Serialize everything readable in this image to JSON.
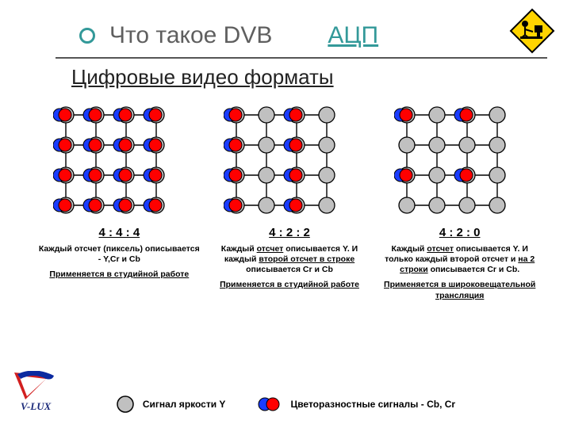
{
  "title": {
    "main": "Что такое DVB",
    "accent": "АЦП",
    "sub": "Цифровые видео форматы"
  },
  "colors": {
    "background": "#ffffff",
    "title_main": "#5f5f5f",
    "title_accent": "#339999",
    "bullet_ring": "#339999",
    "rule": "#555555",
    "text": "#000000",
    "grid_line": "#000000",
    "luma_fill": "#c0c0c0",
    "luma_stroke": "#000000",
    "cb_fill": "#1a3cff",
    "cr_fill": "#ff0000",
    "chroma_stroke": "#000000",
    "sign_bg": "#ffd400",
    "sign_border": "#000000",
    "logo_red": "#d21f1f",
    "logo_blue": "#0b2aa0",
    "logo_text": "#1b2a7a"
  },
  "sizes": {
    "title_fontsize": 30,
    "sub_fontsize": 26,
    "caption_ratio_fontsize": 15,
    "caption_fontsize": 10.5,
    "legend_fontsize": 12,
    "grid_cell": 38,
    "grid_rows": 4,
    "grid_cols": 4,
    "luma_radius": 10,
    "chroma_radius": 8
  },
  "formats": [
    {
      "ratio": "4 : 4 : 4",
      "desc_html": "Каждый отсчет (пиксель) описывается - Y,Cr и Cb",
      "use_html": "Применяется в студийной работе",
      "pattern": "444"
    },
    {
      "ratio": "4 : 2 : 2",
      "desc_html": "Каждый <u>отсчет</u> описывается Y. И каждый <u>второй отсчет в строке</u> описывается Cr и Cb",
      "use_html": "Применяется в студийной работе",
      "pattern": "422"
    },
    {
      "ratio": "4 : 2 : 0",
      "desc_html": "Каждый <u>отсчет</u> описывается Y. И только каждый второй отсчет и <u>на 2 строки</u> описывается Cr и Cb.",
      "use_html": "Применяется в широковещательной трансляция",
      "pattern": "420"
    }
  ],
  "legend": {
    "luma": "Сигнал яркости Y",
    "chroma": "Цветоразностные сигналы - Cb, Cr"
  },
  "logo_text": "V-LUX"
}
